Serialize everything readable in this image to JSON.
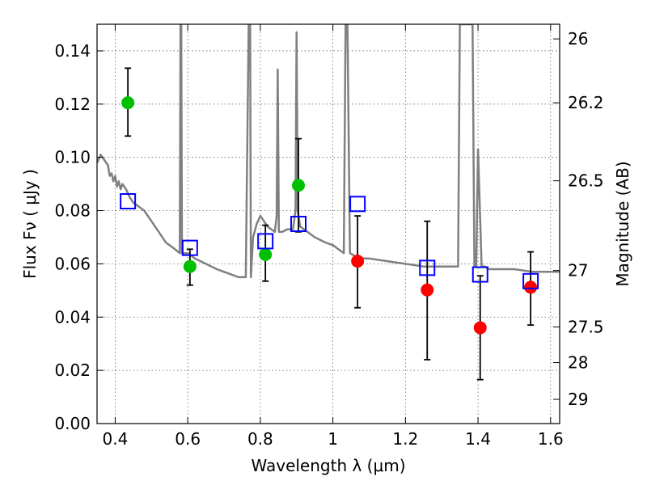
{
  "chart_data": {
    "type": "scatter",
    "xlabel": "Wavelength  λ (μm)",
    "ylabel": "Flux  Fν  ( μJy )",
    "ylabel_right": "Magnitude (AB)",
    "xlim": [
      0.35,
      1.625
    ],
    "ylim": [
      0.0,
      0.15
    ],
    "grid": true,
    "x_ticks": [
      "0.4",
      "0.6",
      "0.8",
      "1",
      "1.2",
      "1.4",
      "1.6"
    ],
    "x_tick_values": [
      0.4,
      0.6,
      0.8,
      1.0,
      1.2,
      1.4,
      1.6
    ],
    "y_ticks": [
      "0.00",
      "0.02",
      "0.04",
      "0.06",
      "0.08",
      "0.10",
      "0.12",
      "0.14"
    ],
    "y_tick_values": [
      0.0,
      0.02,
      0.04,
      0.06,
      0.08,
      0.1,
      0.12,
      0.14
    ],
    "right_ticks": [
      {
        "label": "26",
        "flux": 0.1445
      },
      {
        "label": "26.2",
        "flux": 0.1205
      },
      {
        "label": "26.5",
        "flux": 0.0912
      },
      {
        "label": "27",
        "flux": 0.0575
      },
      {
        "label": "27.5",
        "flux": 0.0363
      },
      {
        "label": "28",
        "flux": 0.0229
      },
      {
        "label": "29",
        "flux": 0.0091
      }
    ],
    "series": [
      {
        "marker": "circle",
        "color": "#00c000",
        "points": [
          {
            "x": 0.435,
            "y": 0.1205,
            "err_lo": 0.108,
            "err_hi": 0.1335
          },
          {
            "x": 0.606,
            "y": 0.059,
            "err_lo": 0.052,
            "err_hi": 0.0655
          },
          {
            "x": 0.814,
            "y": 0.0635,
            "err_lo": 0.0535,
            "err_hi": 0.0745
          },
          {
            "x": 0.905,
            "y": 0.0895,
            "err_lo": 0.072,
            "err_hi": 0.107
          }
        ]
      },
      {
        "marker": "circle",
        "color": "#ff0000",
        "points": [
          {
            "x": 1.068,
            "y": 0.061,
            "err_lo": 0.0435,
            "err_hi": 0.078
          },
          {
            "x": 1.26,
            "y": 0.0502,
            "err_lo": 0.024,
            "err_hi": 0.076
          },
          {
            "x": 1.406,
            "y": 0.036,
            "err_lo": 0.0165,
            "err_hi": 0.0555
          },
          {
            "x": 1.545,
            "y": 0.0512,
            "err_lo": 0.037,
            "err_hi": 0.0645
          }
        ]
      },
      {
        "marker": "square",
        "color": "#0000ff",
        "points": [
          {
            "x": 0.435,
            "y": 0.0835
          },
          {
            "x": 0.606,
            "y": 0.066
          },
          {
            "x": 0.814,
            "y": 0.0685
          },
          {
            "x": 0.905,
            "y": 0.075
          },
          {
            "x": 1.068,
            "y": 0.0825
          },
          {
            "x": 1.26,
            "y": 0.0585
          },
          {
            "x": 1.406,
            "y": 0.056
          },
          {
            "x": 1.545,
            "y": 0.0535
          }
        ]
      }
    ],
    "sed_model": {
      "color": "#808080",
      "x": [
        0.35,
        0.36,
        0.37,
        0.38,
        0.385,
        0.39,
        0.395,
        0.4,
        0.405,
        0.41,
        0.415,
        0.42,
        0.43,
        0.44,
        0.45,
        0.46,
        0.47,
        0.48,
        0.49,
        0.5,
        0.52,
        0.54,
        0.56,
        0.578,
        0.58,
        0.582,
        0.584,
        0.6,
        0.62,
        0.65,
        0.68,
        0.7,
        0.72,
        0.74,
        0.76,
        0.768,
        0.77,
        0.772,
        0.774,
        0.78,
        0.79,
        0.8,
        0.81,
        0.82,
        0.83,
        0.84,
        0.845,
        0.848,
        0.851,
        0.86,
        0.875,
        0.89,
        0.897,
        0.9,
        0.903,
        0.91,
        0.93,
        0.95,
        0.98,
        1.0,
        1.02,
        1.03,
        1.035,
        1.04,
        1.047,
        1.06,
        1.08,
        1.1,
        1.15,
        1.2,
        1.25,
        1.3,
        1.345,
        1.35,
        1.36,
        1.37,
        1.38,
        1.385,
        1.39,
        1.395,
        1.4,
        1.41,
        1.42,
        1.43,
        1.45,
        1.5,
        1.55,
        1.6,
        1.625
      ],
      "y": [
        0.098,
        0.101,
        0.099,
        0.097,
        0.093,
        0.094,
        0.091,
        0.093,
        0.089,
        0.091,
        0.088,
        0.09,
        0.088,
        0.085,
        0.083,
        0.082,
        0.081,
        0.08,
        0.078,
        0.076,
        0.072,
        0.068,
        0.066,
        0.064,
        0.15,
        0.15,
        0.064,
        0.064,
        0.062,
        0.06,
        0.058,
        0.057,
        0.056,
        0.055,
        0.055,
        0.15,
        0.15,
        0.15,
        0.055,
        0.07,
        0.075,
        0.078,
        0.076,
        0.074,
        0.073,
        0.072,
        0.078,
        0.133,
        0.072,
        0.072,
        0.073,
        0.073,
        0.08,
        0.147,
        0.08,
        0.074,
        0.072,
        0.07,
        0.068,
        0.067,
        0.065,
        0.064,
        0.15,
        0.15,
        0.064,
        0.063,
        0.062,
        0.062,
        0.061,
        0.06,
        0.059,
        0.059,
        0.059,
        0.15,
        0.15,
        0.15,
        0.15,
        0.15,
        0.059,
        0.059,
        0.103,
        0.059,
        0.059,
        0.058,
        0.058,
        0.058,
        0.057,
        0.057,
        0.057
      ]
    }
  }
}
